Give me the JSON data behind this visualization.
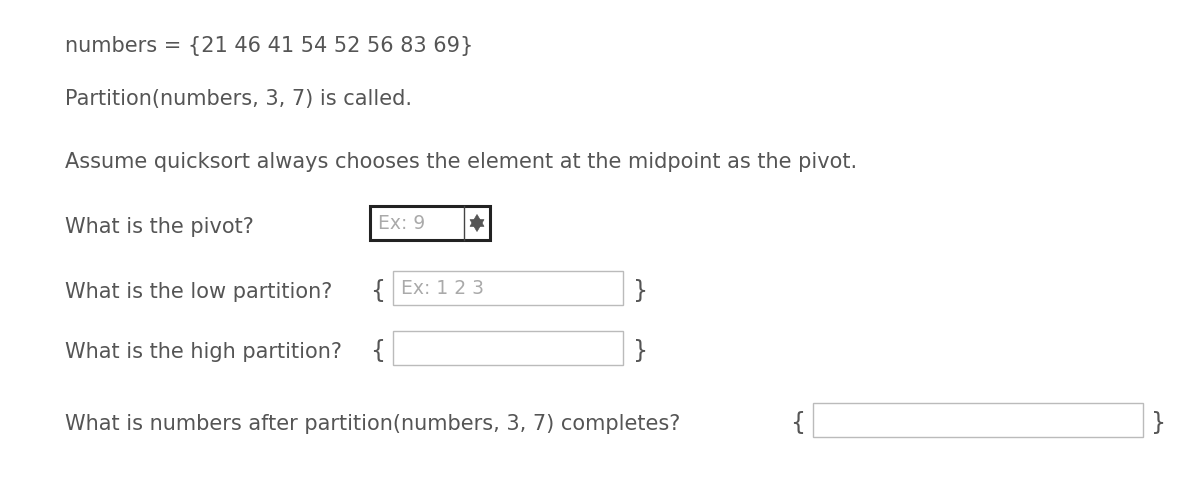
{
  "bg_color": "#ffffff",
  "text_color": "#555555",
  "line1": "numbers = {21 46 41 54 52 56 83 69}",
  "line2": "Partition(numbers, 3, 7) is called.",
  "line3": "Assume quicksort always chooses the element at the midpoint as the pivot.",
  "q1_label": "What is the pivot?",
  "q1_placeholder": "Ex: 9",
  "q2_label": "What is the low partition?",
  "q2_prefix": "{",
  "q2_placeholder": "Ex: 1 2 3",
  "q2_suffix": "}",
  "q3_label": "What is the high partition?",
  "q3_prefix": "{",
  "q3_suffix": "}",
  "q4_label": "What is numbers after partition(numbers, 3, 7) completes?",
  "q4_prefix": "{",
  "q4_suffix": "}",
  "font_size_main": 15.0,
  "font_size_input": 13.5,
  "font_size_brace": 17.0
}
